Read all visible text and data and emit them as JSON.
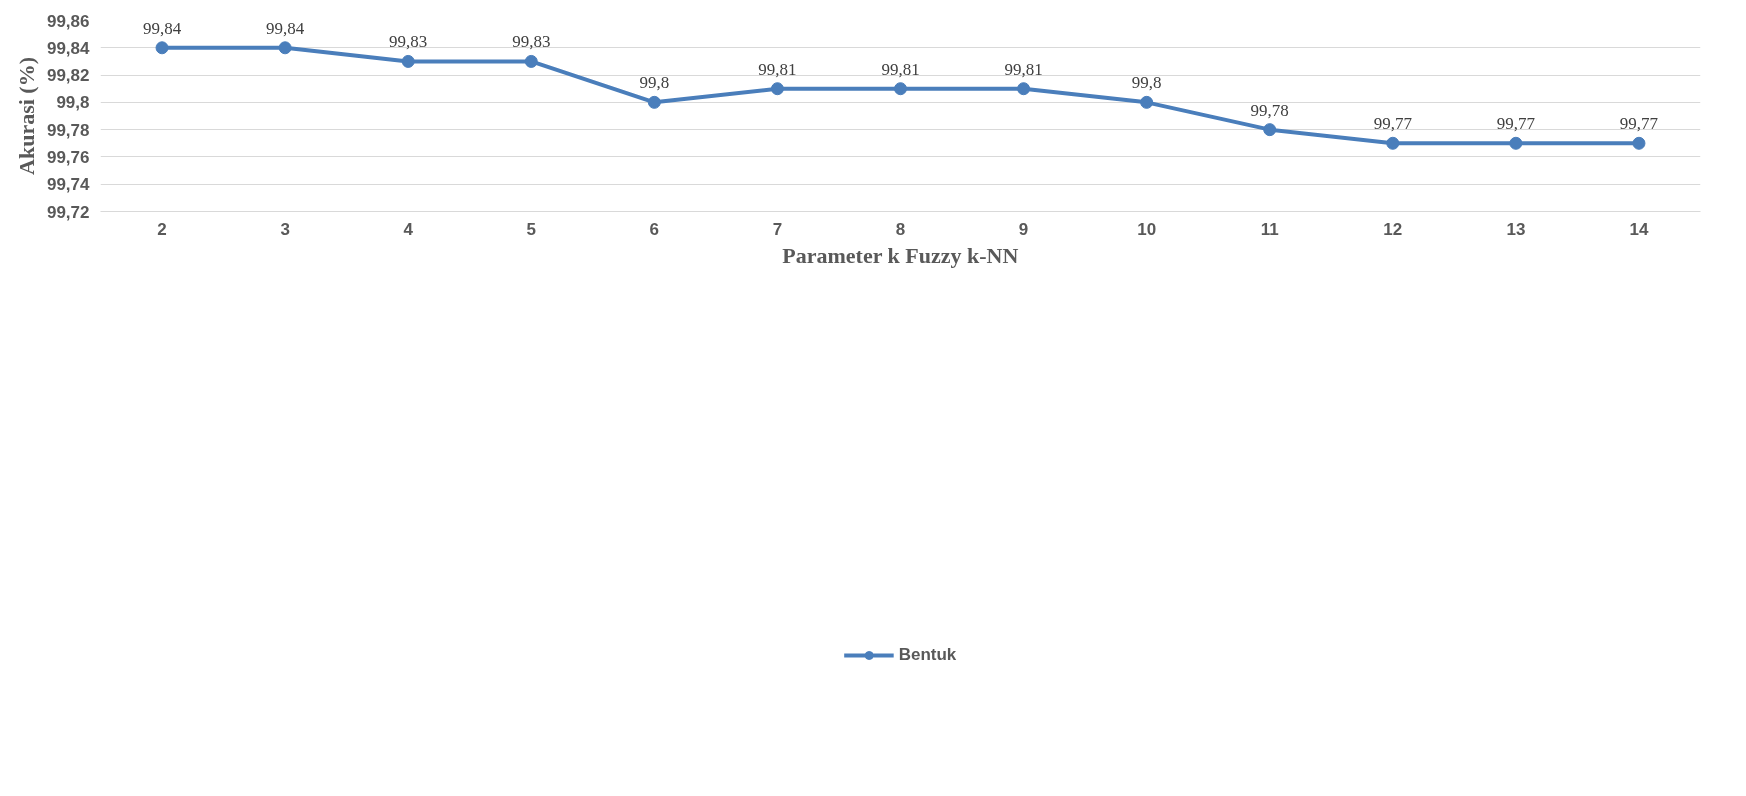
{
  "chart_data": {
    "type": "line",
    "xlabel": "Parameter k Fuzzy k-NN",
    "ylabel": "Akurasi (%)",
    "categories": [
      "2",
      "3",
      "4",
      "5",
      "6",
      "7",
      "8",
      "9",
      "10",
      "11",
      "12",
      "13",
      "14"
    ],
    "series": [
      {
        "name": "Bentuk",
        "color": "#4a7ebb",
        "values": [
          99.84,
          99.84,
          99.83,
          99.83,
          99.8,
          99.81,
          99.81,
          99.81,
          99.8,
          99.78,
          99.77,
          99.77,
          99.77
        ],
        "value_labels": [
          "99,84",
          "99,84",
          "99,83",
          "99,83",
          "99,8",
          "99,81",
          "99,81",
          "99,81",
          "99,8",
          "99,78",
          "99,77",
          "99,77",
          "99,77"
        ]
      }
    ],
    "ylim": [
      99.72,
      99.86
    ],
    "yticks": [
      {
        "value": 99.72,
        "label": "99,72"
      },
      {
        "value": 99.74,
        "label": "99,74"
      },
      {
        "value": 99.76,
        "label": "99,76"
      },
      {
        "value": 99.78,
        "label": "99,78"
      },
      {
        "value": 99.8,
        "label": "99,8"
      },
      {
        "value": 99.82,
        "label": "99,82"
      },
      {
        "value": 99.84,
        "label": "99,84"
      },
      {
        "value": 99.86,
        "label": "99,86"
      }
    ],
    "grid": "y",
    "legend": "bottom",
    "marker": "circle",
    "line_style": "solid"
  }
}
